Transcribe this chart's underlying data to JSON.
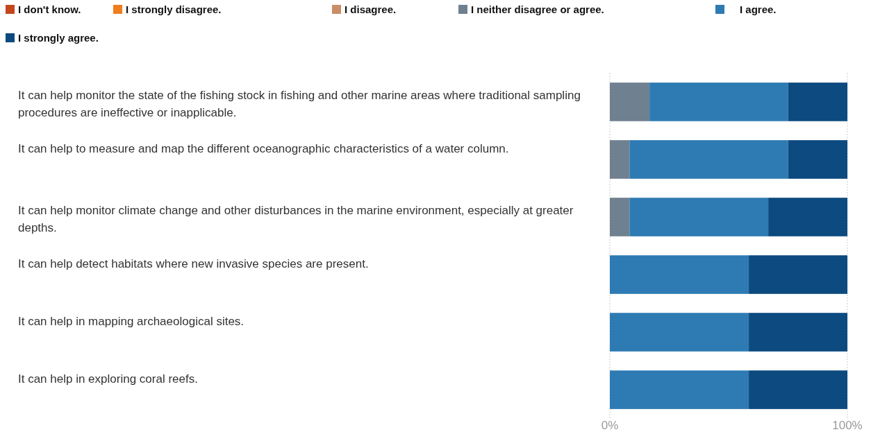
{
  "chart_data": {
    "type": "bar",
    "orientation": "horizontal",
    "stacked": true,
    "categories": [
      "It can help monitor the state of the fishing stock in fishing and other marine areas where traditional sampling procedures are ineffective or inapplicable.",
      "It can help to measure and map the different oceanographic characteristics of a water column.",
      "It can help monitor climate change and other disturbances in the marine environment, especially at greater depths.",
      "It can help detect habitats where new invasive species are present.",
      "It can help in mapping archaeological sites.",
      "It can help in exploring coral reefs."
    ],
    "series": [
      {
        "name": "I don't know.",
        "color": "#c4461c",
        "values": [
          0,
          0,
          0,
          0,
          0,
          0
        ]
      },
      {
        "name": "I strongly disagree.",
        "color": "#f07d1e",
        "values": [
          0,
          0,
          0,
          0,
          0,
          0
        ]
      },
      {
        "name": "I disagree.",
        "color": "#c98e68",
        "values": [
          0,
          0,
          0,
          0,
          0,
          0
        ]
      },
      {
        "name": "I neither disagree or agree.",
        "color": "#6f8090",
        "values": [
          16.7,
          8.3,
          8.3,
          0,
          0,
          0
        ]
      },
      {
        "name": "I agree.",
        "color": "#2e7bb3",
        "values": [
          58.3,
          66.7,
          58.4,
          58.5,
          58.5,
          58.5
        ]
      },
      {
        "name": "I strongly agree.",
        "color": "#0c4a7f",
        "values": [
          25,
          25,
          33.3,
          41.5,
          41.5,
          41.5
        ]
      }
    ],
    "xlim": [
      0,
      100
    ],
    "xticks": [
      {
        "value": 0,
        "label": "0%"
      },
      {
        "value": 100,
        "label": "100%"
      }
    ],
    "grid": "x",
    "legend": "top"
  }
}
